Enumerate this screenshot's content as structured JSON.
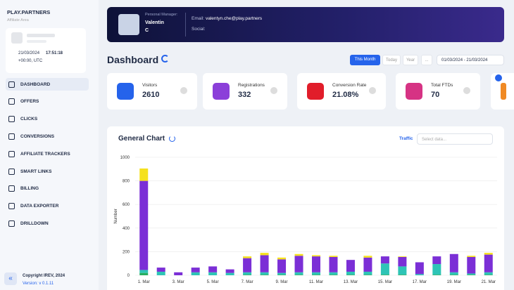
{
  "sidebar": {
    "brand": "PLAY.PARTNERS",
    "subtitle": "Affiliate Area",
    "date": "21/03/2024",
    "time": "17:51:18",
    "timezone": "+00:00, UTC",
    "menu": [
      "DASHBOARD",
      "OFFERS",
      "CLICKS",
      "CONVERSIONS",
      "AFFILIATE TRACKERS",
      "SMART LINKS",
      "BILLING",
      "DATA EXPORTER",
      "DRILLDOWN"
    ],
    "copyright": "Copyright IREV, 2024",
    "version": "Version: v 0.1.11"
  },
  "header": {
    "manager_label": "Personal Manager:",
    "manager_first": "Valentin",
    "manager_last": "C",
    "email_label": "Email:",
    "email": "valentyn.che@play.partners",
    "social_label": "Social:"
  },
  "dashboard": {
    "title": "Dashboard",
    "periods": [
      "This Month",
      "Today",
      "Year",
      "..."
    ],
    "date_range": "01/03/2024 - 21/03/2024"
  },
  "cards": [
    {
      "label": "Visitors",
      "value": "2610"
    },
    {
      "label": "Registrations",
      "value": "332"
    },
    {
      "label": "Conversion Rate",
      "value": "21.08%"
    },
    {
      "label": "Total FTDs",
      "value": "70"
    }
  ],
  "panel": {
    "title": "General Chart",
    "filter_label": "Traffic",
    "filter_placeholder": "Select data..."
  },
  "chart_data": {
    "type": "stacked-bar",
    "y_label": "Number",
    "categories": [
      "1. Mar",
      null,
      "3. Mar",
      null,
      "5. Mar",
      null,
      "7. Mar",
      null,
      "9. Mar",
      null,
      "11. Mar",
      null,
      "13. Mar",
      null,
      "15. Mar",
      null,
      "17. Mar",
      null,
      "19. Mar",
      null,
      "21. Mar"
    ],
    "series": [
      {
        "color": "#27ae60",
        "values": [
          20,
          0,
          0,
          0,
          0,
          0,
          5,
          5,
          5,
          5,
          5,
          5,
          5,
          5,
          5,
          5,
          0,
          5,
          5,
          5,
          5
        ]
      },
      {
        "color": "#2ec4b6",
        "values": [
          25,
          30,
          0,
          25,
          25,
          20,
          20,
          20,
          15,
          20,
          20,
          20,
          25,
          25,
          95,
          70,
          10,
          90,
          20,
          10,
          20
        ]
      },
      {
        "color": "#7b2fd6",
        "values": [
          755,
          35,
          25,
          40,
          50,
          30,
          120,
          145,
          115,
          140,
          135,
          130,
          100,
          120,
          60,
          80,
          100,
          65,
          155,
          140,
          150
        ]
      },
      {
        "color": "#f5e11d",
        "values": [
          105,
          0,
          0,
          0,
          0,
          0,
          15,
          20,
          15,
          15,
          10,
          10,
          0,
          15,
          0,
          5,
          0,
          0,
          0,
          10,
          15
        ]
      }
    ],
    "ylim": [
      0,
      1000
    ],
    "yticks": [
      0,
      200,
      400,
      600,
      800,
      1000
    ],
    "grid": true
  }
}
